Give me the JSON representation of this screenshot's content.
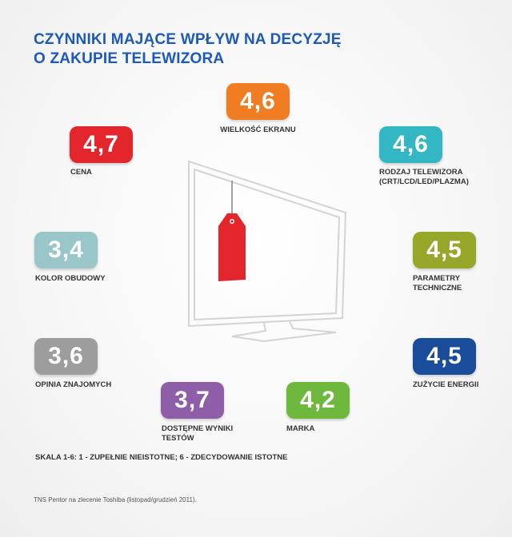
{
  "title_lines": [
    "CZYNNIKI MAJĄCE WPŁYW NA DECYZJĘ",
    "O ZAKUPIE TELEWIZORA"
  ],
  "scale_note": "SKALA 1-6:  1 - ZUPEŁNIE NIEISTOTNE; 6 - ZDECYDOWANIE ISTOTNE",
  "source_note": "TNS Pentor na zlecenie Toshiba (listopad/grudzień 2011).",
  "chart_data": {
    "type": "table",
    "title": "CZYNNIKI MAJĄCE WPŁYW NA DECYZJĘ O ZAKUPIE TELEWIZORA",
    "scale": "1-6",
    "categories": [
      "WIELKOŚĆ EKRANU",
      "CENA",
      "RODZAJ TELEWIZORA (CRT/LCD/LED/PLAZMA)",
      "KOLOR OBUDOWY",
      "PARAMETRY TECHNICZNE",
      "OPINIA ZNAJOMYCH",
      "ZUŻYCIE ENERGII",
      "DOSTĘPNE WYNIKI TESTÓW",
      "MARKA"
    ],
    "values": [
      4.6,
      4.7,
      4.6,
      3.4,
      4.5,
      3.6,
      4.5,
      3.7,
      4.2
    ],
    "items": [
      {
        "display": "4,6",
        "value": 4.6,
        "label_lines": [
          "WIELKOŚĆ EKRANU"
        ],
        "color": "#f07d22"
      },
      {
        "display": "4,7",
        "value": 4.7,
        "label_lines": [
          "CENA"
        ],
        "color": "#e3262c"
      },
      {
        "display": "4,6",
        "value": 4.6,
        "label_lines": [
          "RODZAJ TELEWIZORA",
          "(CRT/LCD/LED/PLAZMA)"
        ],
        "color": "#33b7c4"
      },
      {
        "display": "3,4",
        "value": 3.4,
        "label_lines": [
          "KOLOR OBUDOWY"
        ],
        "color": "#99c6c9"
      },
      {
        "display": "4,5",
        "value": 4.5,
        "label_lines": [
          "PARAMETRY",
          "TECHNICZNE"
        ],
        "color": "#96a72a"
      },
      {
        "display": "3,6",
        "value": 3.6,
        "label_lines": [
          "OPINIA ZNAJOMYCH"
        ],
        "color": "#9d9d9d"
      },
      {
        "display": "4,5",
        "value": 4.5,
        "label_lines": [
          "ZUŻYCIE ENERGII"
        ],
        "color": "#1a4c9c"
      },
      {
        "display": "3,7",
        "value": 3.7,
        "label_lines": [
          "DOSTĘPNE WYNIKI",
          "TESTÓW"
        ],
        "color": "#8f5ea9"
      },
      {
        "display": "4,2",
        "value": 4.2,
        "label_lines": [
          "MARKA"
        ],
        "color": "#6fb83e"
      }
    ]
  },
  "illustration": {
    "tv_icon": "tv-icon",
    "tag_icon": "price-tag-icon",
    "tv_color": "#d9d9d9",
    "tag_color": "#e3262c"
  }
}
